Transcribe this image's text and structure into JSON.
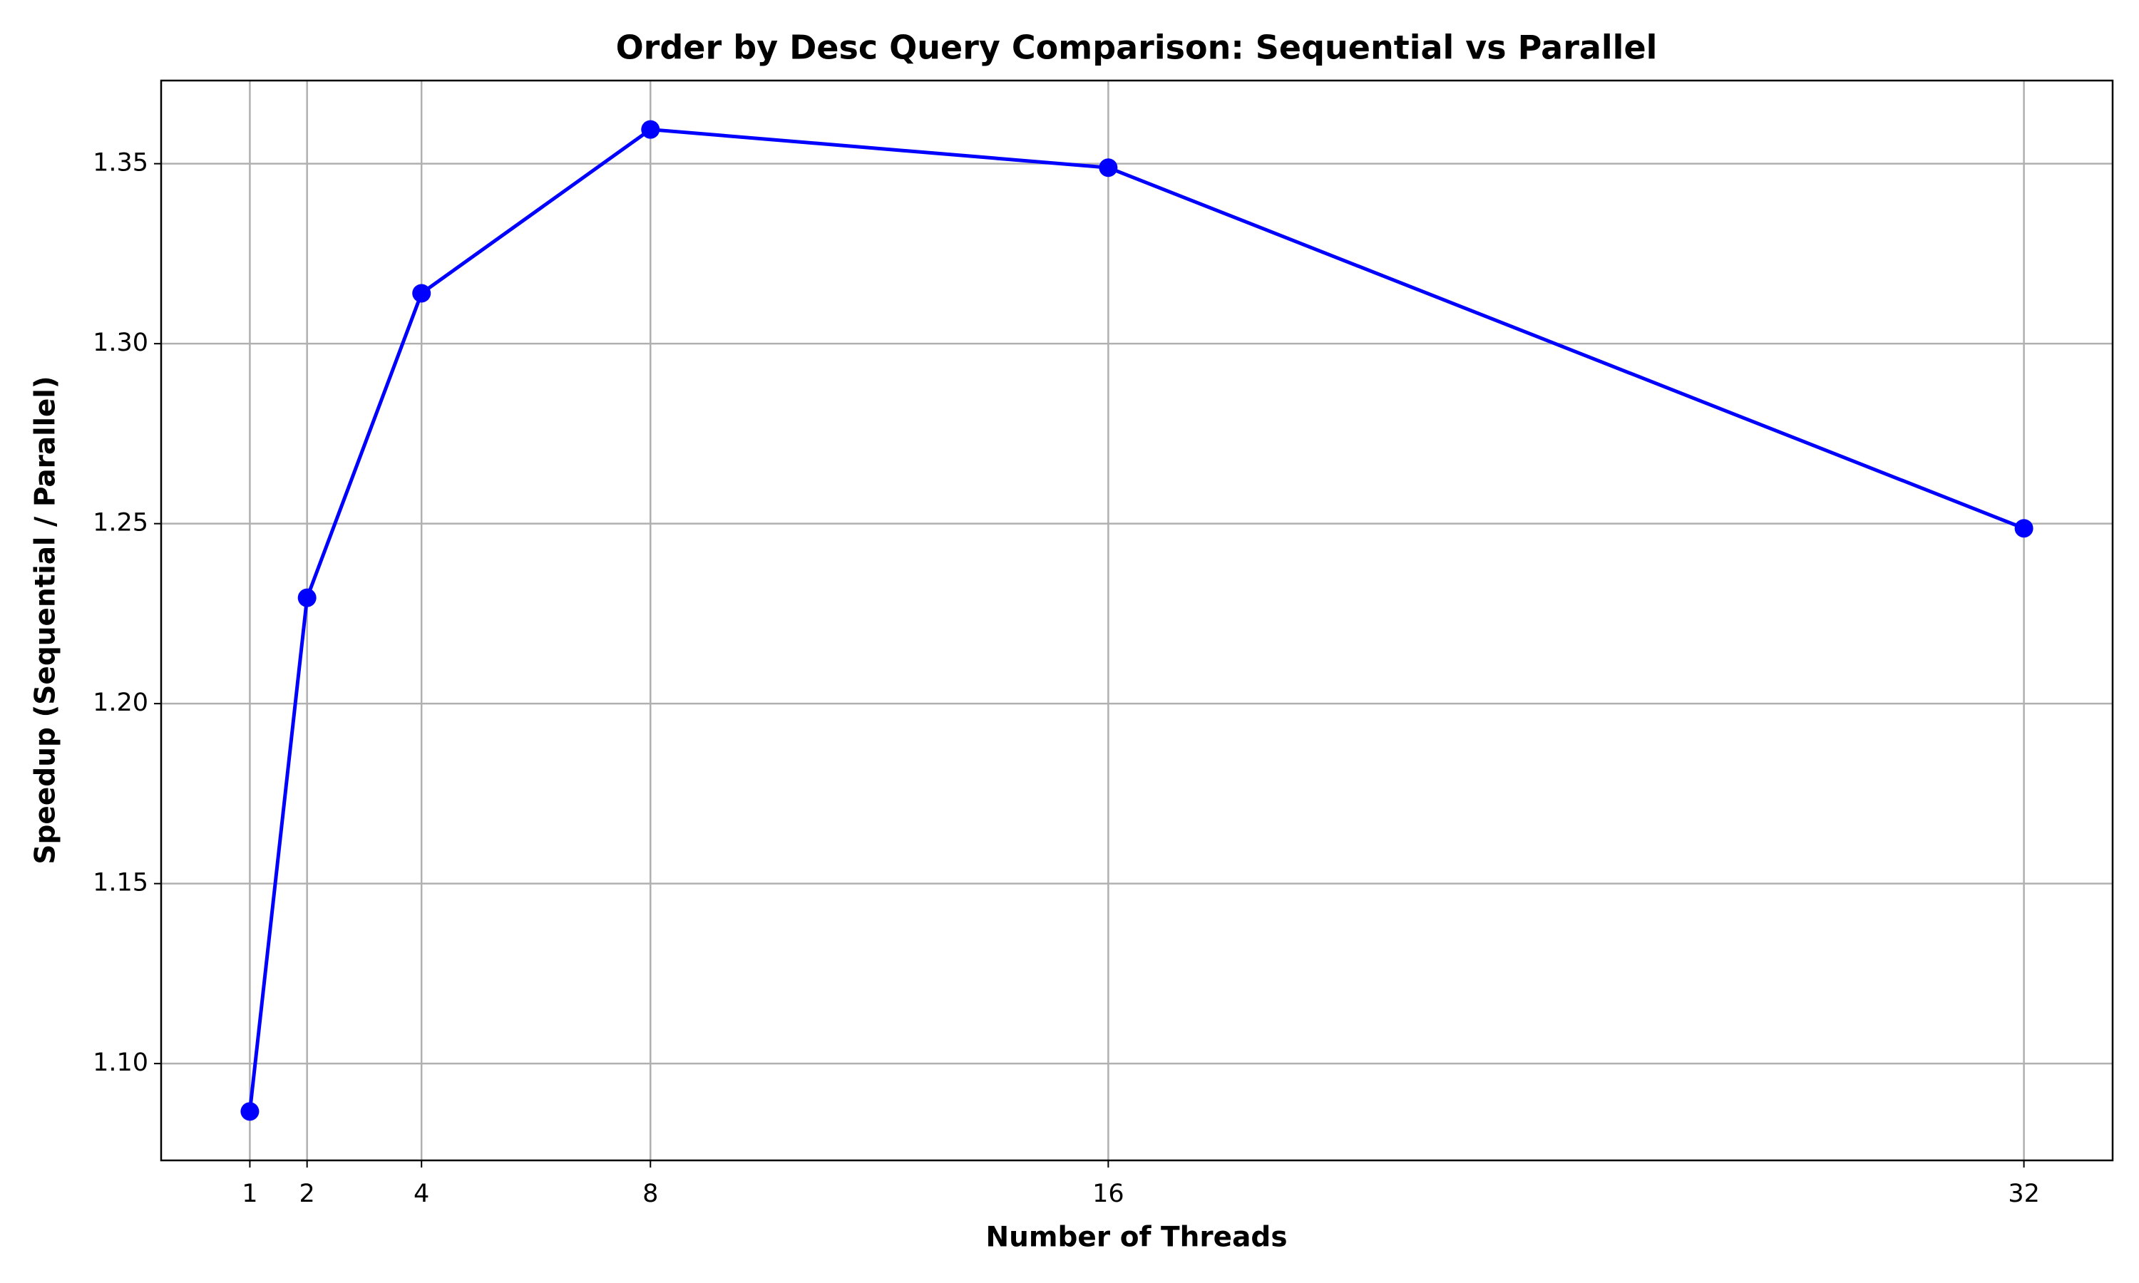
{
  "chart_data": {
    "type": "line",
    "title": "Order by Desc Query Comparison: Sequential vs Parallel",
    "x_label": "Number of Threads",
    "y_label": "Speedup (Sequential / Parallel)",
    "x": [
      1,
      2,
      4,
      8,
      16,
      32
    ],
    "series": [
      {
        "color": "#0000ff",
        "values": [
          1.0867,
          1.2294,
          1.314,
          1.3595,
          1.3489,
          1.2487
        ]
      }
    ],
    "xlim": [
      -0.55,
      33.55
    ],
    "xticks": [
      1,
      2,
      4,
      8,
      16,
      32
    ],
    "ylim": [
      1.0731,
      1.3731
    ],
    "yticks": [
      {
        "value": 1.1,
        "label": "1.10"
      },
      1.15,
      {
        "value": 1.2,
        "label": "1.20"
      },
      1.25,
      {
        "value": 1.3,
        "label": "1.30"
      },
      1.35
    ],
    "grid": true
  }
}
